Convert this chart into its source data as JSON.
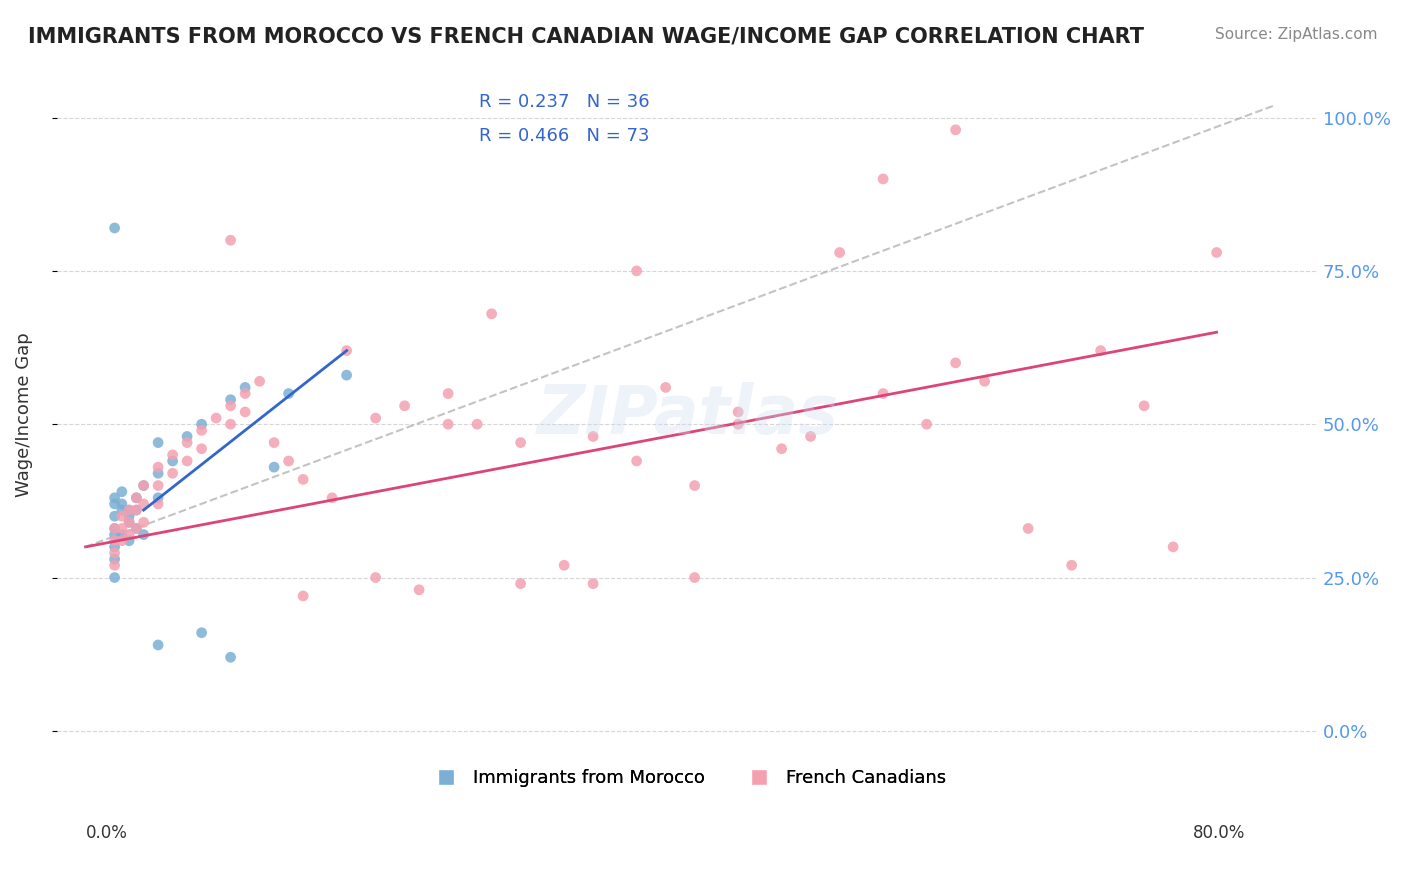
{
  "title": "IMMIGRANTS FROM MOROCCO VS FRENCH CANADIAN WAGE/INCOME GAP CORRELATION CHART",
  "source": "Source: ZipAtlas.com",
  "xlabel_bottom": "0.0%                                                                                                                                                  80.0%",
  "ylabel": "Wage/Income Gap",
  "x_min": -0.02,
  "x_max": 0.85,
  "y_min": -0.05,
  "y_max": 1.08,
  "yticks": [
    0.0,
    0.25,
    0.5,
    0.75,
    1.0
  ],
  "ytick_labels": [
    "0.0%",
    "25.0%",
    "50.0%",
    "75.0%",
    "100.0%"
  ],
  "blue_scatter_x": [
    0.02,
    0.02,
    0.02,
    0.02,
    0.02,
    0.02,
    0.025,
    0.025,
    0.03,
    0.03,
    0.03,
    0.035,
    0.035,
    0.035,
    0.04,
    0.04,
    0.05,
    0.05,
    0.06,
    0.07,
    0.1,
    0.11,
    0.13,
    0.14,
    0.18,
    0.02,
    0.02,
    0.02,
    0.025,
    0.025,
    0.03,
    0.05,
    0.08,
    0.1,
    0.05,
    0.08
  ],
  "blue_scatter_y": [
    0.35,
    0.33,
    0.32,
    0.3,
    0.28,
    0.25,
    0.36,
    0.32,
    0.35,
    0.34,
    0.31,
    0.38,
    0.36,
    0.33,
    0.4,
    0.32,
    0.42,
    0.38,
    0.44,
    0.48,
    0.54,
    0.56,
    0.43,
    0.55,
    0.58,
    0.82,
    0.38,
    0.37,
    0.39,
    0.37,
    0.36,
    0.47,
    0.5,
    0.12,
    0.14,
    0.16
  ],
  "pink_scatter_x": [
    0.02,
    0.02,
    0.02,
    0.02,
    0.025,
    0.025,
    0.025,
    0.03,
    0.03,
    0.03,
    0.035,
    0.035,
    0.035,
    0.04,
    0.04,
    0.04,
    0.05,
    0.05,
    0.05,
    0.06,
    0.06,
    0.07,
    0.07,
    0.08,
    0.08,
    0.09,
    0.1,
    0.1,
    0.11,
    0.11,
    0.12,
    0.13,
    0.14,
    0.15,
    0.17,
    0.18,
    0.2,
    0.22,
    0.23,
    0.25,
    0.27,
    0.3,
    0.33,
    0.35,
    0.38,
    0.4,
    0.42,
    0.45,
    0.48,
    0.5,
    0.55,
    0.58,
    0.6,
    0.62,
    0.65,
    0.68,
    0.7,
    0.73,
    0.75,
    0.78,
    0.1,
    0.28,
    0.52,
    0.55,
    0.38,
    0.45,
    0.3,
    0.35,
    0.42,
    0.15,
    0.2,
    0.25,
    0.6
  ],
  "pink_scatter_y": [
    0.33,
    0.31,
    0.29,
    0.27,
    0.35,
    0.33,
    0.31,
    0.36,
    0.34,
    0.32,
    0.38,
    0.36,
    0.33,
    0.4,
    0.37,
    0.34,
    0.43,
    0.4,
    0.37,
    0.45,
    0.42,
    0.47,
    0.44,
    0.49,
    0.46,
    0.51,
    0.53,
    0.5,
    0.55,
    0.52,
    0.57,
    0.47,
    0.44,
    0.41,
    0.38,
    0.62,
    0.51,
    0.53,
    0.23,
    0.55,
    0.5,
    0.47,
    0.27,
    0.48,
    0.44,
    0.56,
    0.4,
    0.52,
    0.46,
    0.48,
    0.55,
    0.5,
    0.6,
    0.57,
    0.33,
    0.27,
    0.62,
    0.53,
    0.3,
    0.78,
    0.8,
    0.68,
    0.78,
    0.9,
    0.75,
    0.5,
    0.24,
    0.24,
    0.25,
    0.22,
    0.25,
    0.5,
    0.98
  ],
  "blue_line_x": [
    0.04,
    0.18
  ],
  "blue_line_y": [
    0.36,
    0.62
  ],
  "pink_line_x": [
    0.0,
    0.78
  ],
  "pink_line_y": [
    0.3,
    0.65
  ],
  "blue_color": "#7bafd4",
  "pink_color": "#f4a0b0",
  "blue_line_color": "#3366cc",
  "pink_line_color": "#dd4477",
  "legend_R1": "R = 0.237",
  "legend_N1": "N = 36",
  "legend_R2": "R = 0.466",
  "legend_N2": "N = 73",
  "label1": "Immigrants from Morocco",
  "label2": "French Canadians",
  "watermark": "ZIPatlas",
  "background_color": "#ffffff",
  "plot_bg_color": "#ffffff",
  "grid_color": "#cccccc",
  "title_color": "#222222",
  "legend_text_color": "#3366cc",
  "right_ytick_color": "#5599ee"
}
